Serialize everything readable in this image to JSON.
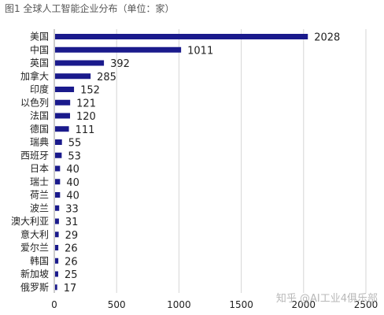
{
  "chart_data": {
    "type": "bar",
    "orientation": "horizontal",
    "title": "图1  全球人工智能企业分布（单位：家）",
    "categories": [
      "美国",
      "中国",
      "英国",
      "加拿大",
      "印度",
      "以色列",
      "法国",
      "德国",
      "瑞典",
      "西班牙",
      "日本",
      "瑞士",
      "荷兰",
      "波兰",
      "澳大利亚",
      "意大利",
      "爱尔兰",
      "韩国",
      "新加坡",
      "俄罗斯"
    ],
    "values": [
      2028,
      1011,
      392,
      285,
      152,
      121,
      120,
      111,
      55,
      53,
      40,
      40,
      40,
      33,
      31,
      29,
      26,
      26,
      25,
      17
    ],
    "xlim": [
      0,
      2500
    ],
    "xticks": [
      0,
      500,
      1000,
      1500,
      2000,
      2500
    ],
    "grid": true,
    "bar_color": "#1a1a8c"
  },
  "watermark": "知乎 @AI工业4俱乐部"
}
